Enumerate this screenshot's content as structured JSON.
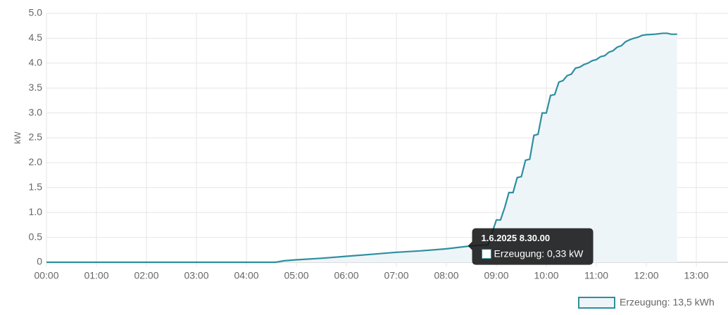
{
  "chart_data": {
    "type": "line",
    "y_label": "kW",
    "x": [
      0,
      275,
      285,
      300,
      330,
      360,
      390,
      420,
      450,
      480,
      510,
      530,
      535,
      540,
      545,
      550,
      555,
      560,
      565,
      570,
      575,
      580,
      585,
      590,
      595,
      600,
      605,
      610,
      615,
      620,
      625,
      630,
      635,
      640,
      645,
      650,
      655,
      660,
      665,
      670,
      675,
      680,
      685,
      690,
      695,
      700,
      705,
      710,
      715,
      720,
      730,
      740,
      745,
      750,
      757
    ],
    "series": [
      {
        "name": "Erzeugung: 13,5 kWh",
        "color": "#2e8fa0",
        "fill": "#eef5f8",
        "values": [
          0,
          0,
          0.03,
          0.05,
          0.08,
          0.12,
          0.16,
          0.2,
          0.23,
          0.27,
          0.33,
          0.35,
          0.6,
          0.85,
          0.85,
          1.1,
          1.4,
          1.4,
          1.7,
          1.72,
          2.05,
          2.07,
          2.55,
          2.57,
          3.0,
          3.0,
          3.35,
          3.37,
          3.62,
          3.65,
          3.75,
          3.78,
          3.9,
          3.92,
          3.97,
          4.0,
          4.05,
          4.07,
          4.13,
          4.15,
          4.22,
          4.25,
          4.32,
          4.35,
          4.43,
          4.47,
          4.5,
          4.52,
          4.56,
          4.57,
          4.58,
          4.6,
          4.6,
          4.58,
          4.58
        ]
      }
    ],
    "xlim": [
      0,
      818
    ],
    "xticks": [
      {
        "value": 0,
        "label": "00:00"
      },
      {
        "value": 60,
        "label": "01:00"
      },
      {
        "value": 120,
        "label": "02:00"
      },
      {
        "value": 180,
        "label": "03:00"
      },
      {
        "value": 240,
        "label": "04:00"
      },
      {
        "value": 300,
        "label": "05:00"
      },
      {
        "value": 360,
        "label": "06:00"
      },
      {
        "value": 420,
        "label": "07:00"
      },
      {
        "value": 480,
        "label": "08:00"
      },
      {
        "value": 540,
        "label": "09:00"
      },
      {
        "value": 600,
        "label": "10:00"
      },
      {
        "value": 660,
        "label": "11:00"
      },
      {
        "value": 720,
        "label": "12:00"
      },
      {
        "value": 780,
        "label": "13:00"
      }
    ],
    "ylim": [
      0,
      5
    ],
    "yticks": [
      0,
      0.5,
      {
        "value": 1,
        "label": "1.0"
      },
      1.5,
      {
        "value": 2,
        "label": "2.0"
      },
      2.5,
      {
        "value": 3,
        "label": "3.0"
      },
      3.5,
      {
        "value": 4,
        "label": "4.0"
      },
      4.5,
      {
        "value": 5,
        "label": "5.0"
      }
    ],
    "grid": true,
    "legend": "bottom-right",
    "tooltip": {
      "title": "1.6.2025 8.30.00",
      "label": "Erzeugung: 0,33 kW",
      "point": 10
    }
  }
}
